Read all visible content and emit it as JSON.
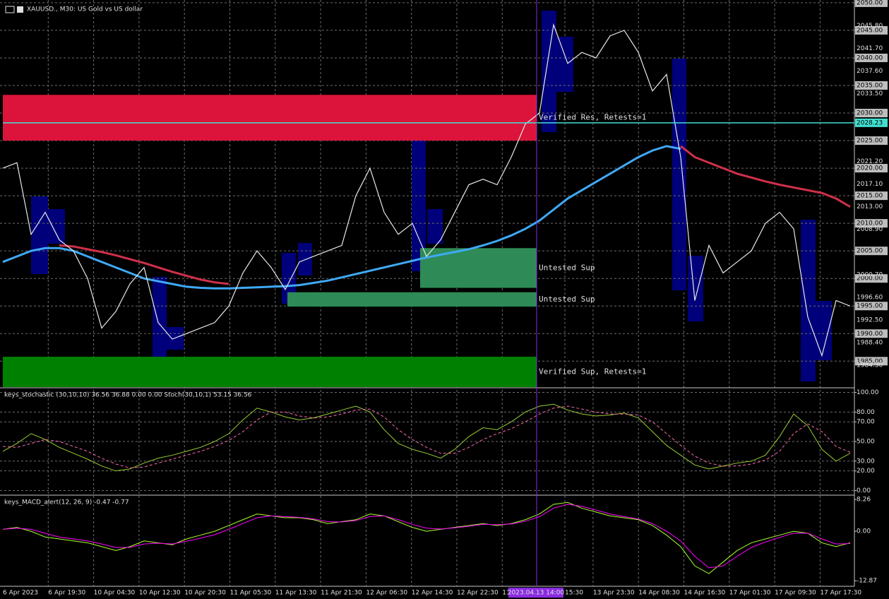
{
  "chart_data": [
    {
      "type": "line",
      "title": "XAUUSD., M30:  US Gold vs US dollar",
      "color": "#e8e8e8",
      "values": [
        2020,
        2021,
        2008,
        2012,
        2007,
        2005,
        2000,
        1991,
        1994,
        1999,
        2002,
        1992,
        1989,
        1990,
        1991,
        1992,
        1995,
        2001,
        2005,
        2002,
        1998,
        2003,
        2004,
        2005,
        2006,
        2015,
        2020,
        2012,
        2008,
        2010,
        2004,
        2007,
        2012,
        2017,
        2018,
        2017,
        2022,
        2028,
        2030,
        2046,
        2039,
        2041,
        2040,
        2044,
        2045,
        2041,
        2034,
        2037,
        2022,
        1996,
        2006,
        2001,
        2003,
        2005,
        2010,
        2012,
        2009,
        1993,
        1986,
        1996,
        1995
      ],
      "moving_averages": [
        {
          "color": "#3fa9f5",
          "values": [
            2003,
            2004,
            2005,
            2005.5,
            2005.5,
            2005,
            2004,
            2003,
            2002,
            2001,
            2000,
            1999.5,
            1999,
            1998.5,
            1998.3,
            1998.2,
            1998.2,
            1998.3,
            1998.4,
            1998.5,
            1998.6,
            1998.8,
            1999.2,
            1999.6,
            2000.2,
            2000.8,
            2001.4,
            2002,
            2002.6,
            2003.2,
            2003.8,
            2004.3,
            2004.8,
            2005.3,
            2006,
            2006.8,
            2007.8,
            2009,
            2010.5,
            2012.5,
            2014.5,
            2016,
            2017.5,
            2019,
            2020.5,
            2022,
            2023.2,
            2024,
            2023.5,
            null,
            null,
            null,
            null,
            null,
            null,
            null,
            null,
            null,
            null,
            null,
            null
          ]
        },
        {
          "color": "#d0304a",
          "values": [
            null,
            null,
            null,
            null,
            2006,
            2005.8,
            2005.3,
            2004.8,
            2004.2,
            2003.5,
            2002.8,
            2002,
            2001.2,
            2000.5,
            1999.8,
            1999.3,
            1999,
            null,
            null,
            null,
            null,
            null,
            null,
            null,
            null,
            null,
            null,
            null,
            null,
            null,
            null,
            null,
            null,
            null,
            null,
            null,
            null,
            null,
            null,
            null,
            null,
            null,
            null,
            null,
            null,
            null,
            null,
            null,
            2024,
            2022,
            2021,
            2020,
            2019,
            2018.3,
            2017.6,
            2017,
            2016.5,
            2016,
            2015.5,
            2014.5,
            2013
          ]
        }
      ],
      "zones": [
        {
          "label": "Verified Res, Retests=1",
          "top": 2033.3,
          "bottom": 2025,
          "start": 0,
          "color": "#dc143c"
        },
        {
          "label": "Untested Sup",
          "top": 2005.5,
          "bottom": 1998.3,
          "start": 29.55,
          "color": "#2e8b57"
        },
        {
          "label": "Untested Sup",
          "top": 1997.5,
          "bottom": 1994.9,
          "start": 20.15,
          "color": "#2e8b57"
        },
        {
          "label": "Verified Sup, Retests=1",
          "top": 1985.8,
          "bottom": 1980.3,
          "start": 0,
          "color": "#008000"
        }
      ],
      "price_line": {
        "value": 2028.23,
        "label": "2028.23",
        "color": "#40e0d0"
      },
      "ylim": [
        1980.3,
        2050.5
      ],
      "yticks": [
        {
          "value": 2050,
          "label": "2050.00"
        },
        {
          "value": 2045,
          "label": "2045.00"
        },
        {
          "value": 2040,
          "label": "2040.00"
        },
        {
          "value": 2035,
          "label": "2035.00"
        },
        {
          "value": 2030,
          "label": "2030.00"
        },
        {
          "value": 2025,
          "label": "2025.00"
        },
        {
          "value": 2020,
          "label": "2020.00"
        },
        {
          "value": 2015,
          "label": "2015.00"
        },
        {
          "value": 2010,
          "label": "2010.00"
        },
        {
          "value": 2005,
          "label": "2005.00"
        },
        {
          "value": 2000,
          "label": "2000.00"
        },
        {
          "value": 1995,
          "label": "1995.00"
        },
        {
          "value": 1990,
          "label": "1990.00"
        },
        {
          "value": 1985,
          "label": "1985.00"
        }
      ],
      "price_labels": [
        {
          "value": 2045.8,
          "label": "2045.80"
        },
        {
          "value": 2041.7,
          "label": "2041.70"
        },
        {
          "value": 2037.6,
          "label": "2037.60"
        },
        {
          "value": 2033.5,
          "label": "2033.50"
        },
        {
          "value": 2021.2,
          "label": "2021.20"
        },
        {
          "value": 2017.1,
          "label": "2017.10"
        },
        {
          "value": 2013,
          "label": "2013.00"
        },
        {
          "value": 2008.9,
          "label": "2008.90"
        },
        {
          "value": 2000.7,
          "label": "2000.70"
        },
        {
          "value": 1996.6,
          "label": "1996.60"
        },
        {
          "value": 1992.5,
          "label": "1992.50"
        },
        {
          "value": 1988.4,
          "label": "1988.40"
        },
        {
          "value": 1984.3,
          "label": "1984.30"
        }
      ],
      "grid": true
    },
    {
      "type": "line",
      "title": "keys_stochastic (30,10,10) 36.56 36.88 0.00 0.00 Stoch(30,10,1) 53.15 36.56",
      "series": [
        {
          "color": "#9acd32",
          "style": "solid",
          "values": [
            40,
            48,
            58,
            52,
            44,
            38,
            32,
            25,
            20,
            22,
            28,
            33,
            36,
            40,
            44,
            50,
            58,
            72,
            84,
            80,
            75,
            72,
            74,
            78,
            82,
            86,
            80,
            62,
            48,
            42,
            38,
            33,
            42,
            55,
            64,
            62,
            70,
            80,
            86,
            88,
            82,
            78,
            76,
            77,
            79,
            74,
            60,
            46,
            36,
            26,
            22,
            25,
            28,
            30,
            36,
            55,
            78,
            66,
            42,
            30,
            38
          ]
        },
        {
          "color": "#ff69b4",
          "style": "dashed",
          "values": [
            45,
            44,
            48,
            52,
            50,
            45,
            40,
            33,
            27,
            23,
            24,
            28,
            32,
            36,
            40,
            45,
            51,
            60,
            72,
            80,
            80,
            76,
            74,
            75,
            78,
            82,
            83,
            75,
            62,
            52,
            44,
            38,
            38,
            44,
            52,
            58,
            63,
            70,
            78,
            84,
            86,
            83,
            80,
            78,
            78,
            77,
            70,
            58,
            46,
            35,
            28,
            25,
            25,
            27,
            31,
            40,
            58,
            68,
            60,
            45,
            39
          ]
        }
      ],
      "ylim": [
        -4,
        104
      ],
      "yticks": [
        {
          "value": 100,
          "label": "100.00"
        },
        {
          "value": 80,
          "label": "80.00"
        },
        {
          "value": 70,
          "label": "70.00"
        },
        {
          "value": 50,
          "label": "50.00"
        },
        {
          "value": 30,
          "label": "30.00"
        },
        {
          "value": 20,
          "label": "20.00"
        },
        {
          "value": 0,
          "label": "0.00"
        }
      ],
      "grid": true
    },
    {
      "type": "line",
      "title": "keys_MACD_alert(12, 26, 9) -0.47 -0.77",
      "series": [
        {
          "color": "#adff2f",
          "style": "solid",
          "values": [
            0.5,
            1,
            0,
            -1.5,
            -2,
            -2.5,
            -3,
            -4,
            -5,
            -4,
            -2.5,
            -3,
            -3.5,
            -2,
            -1,
            0,
            1.5,
            3,
            4.5,
            4,
            3.5,
            3.5,
            3,
            2,
            2.5,
            3,
            4.5,
            4,
            2.5,
            1,
            0,
            0.5,
            1,
            1.5,
            2,
            1.5,
            2,
            3,
            4.5,
            7,
            7.5,
            6,
            5,
            4,
            3.5,
            3,
            1.5,
            -1,
            -4,
            -9,
            -11,
            -8,
            -5,
            -3,
            -2,
            -1,
            0,
            -0.5,
            -3,
            -4,
            -3
          ]
        },
        {
          "color": "#ff00ff",
          "style": "solid",
          "values": [
            0.5,
            0.8,
            0.5,
            -0.5,
            -1.5,
            -2,
            -2.5,
            -3.3,
            -4.2,
            -4.2,
            -3.3,
            -3.1,
            -3.3,
            -2.6,
            -1.8,
            -0.9,
            0.5,
            2,
            3.5,
            4,
            3.8,
            3.6,
            3.2,
            2.5,
            2.4,
            2.8,
            3.8,
            4,
            3,
            1.8,
            0.8,
            0.6,
            0.9,
            1.3,
            1.8,
            1.7,
            1.9,
            2.6,
            3.8,
            6,
            7,
            6.5,
            5.5,
            4.5,
            3.8,
            3.2,
            2,
            0,
            -2.5,
            -6.5,
            -9.5,
            -9,
            -6.5,
            -4.2,
            -2.8,
            -1.6,
            -0.5,
            -0.5,
            -2,
            -3.3,
            -3.2
          ]
        }
      ],
      "ylim": [
        -14.3,
        9.2
      ],
      "yticks": [
        8.26,
        {
          "value": 0,
          "label": "0.00"
        },
        -12.87
      ],
      "grid": false
    }
  ],
  "time_axis": {
    "labels": [
      "6 Apr 2023",
      "6 Apr 19:30",
      "10 Apr 04:30",
      "10 Apr 12:30",
      "10 Apr 20:30",
      "11 Apr 05:30",
      "11 Apr 13:30",
      "11 Apr 21:30",
      "12 Apr 06:30",
      "12 Apr 14:30",
      "12 Apr 22:30",
      "13",
      "15:30",
      "13 Apr 23:30",
      "14 Apr 08:30",
      "14 Apr 16:30",
      "17 Apr 01:30",
      "17 Apr 09:30",
      "17 Apr 17:30"
    ],
    "cursor": 37.8,
    "cursor_label": "2023.04.13 14:00",
    "cursor_color": "#8a2be2"
  }
}
